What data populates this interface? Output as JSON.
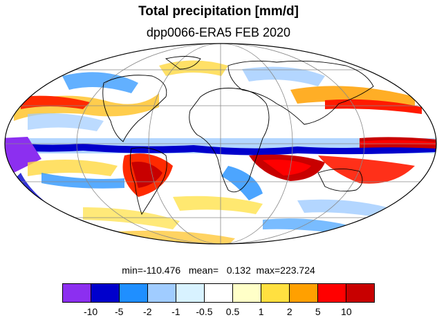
{
  "title": "Total precipitation [mm/d]",
  "subtitle": "dpp0066-ERA5 FEB 2020",
  "stats": {
    "min_label": "min=",
    "min_value": "-110.476",
    "mean_label": "mean=",
    "mean_value": "0.132",
    "max_label": "max=",
    "max_value": "223.724"
  },
  "colorbar": {
    "colors": [
      "#8c2ff0",
      "#0000cc",
      "#1f8fff",
      "#a0ccff",
      "#d8f2ff",
      "#ffffff",
      "#ffffc8",
      "#ffe040",
      "#ffa000",
      "#ff0000",
      "#c80000"
    ],
    "tick_labels": [
      "-10",
      "-5",
      "-2",
      "-1",
      "-0.5",
      "0.5",
      "1",
      "2",
      "5",
      "10"
    ]
  },
  "map": {
    "projection": "Mollweide",
    "background_color": "#ffffff",
    "outline_color": "#000000",
    "gridline_color": "#888888"
  }
}
